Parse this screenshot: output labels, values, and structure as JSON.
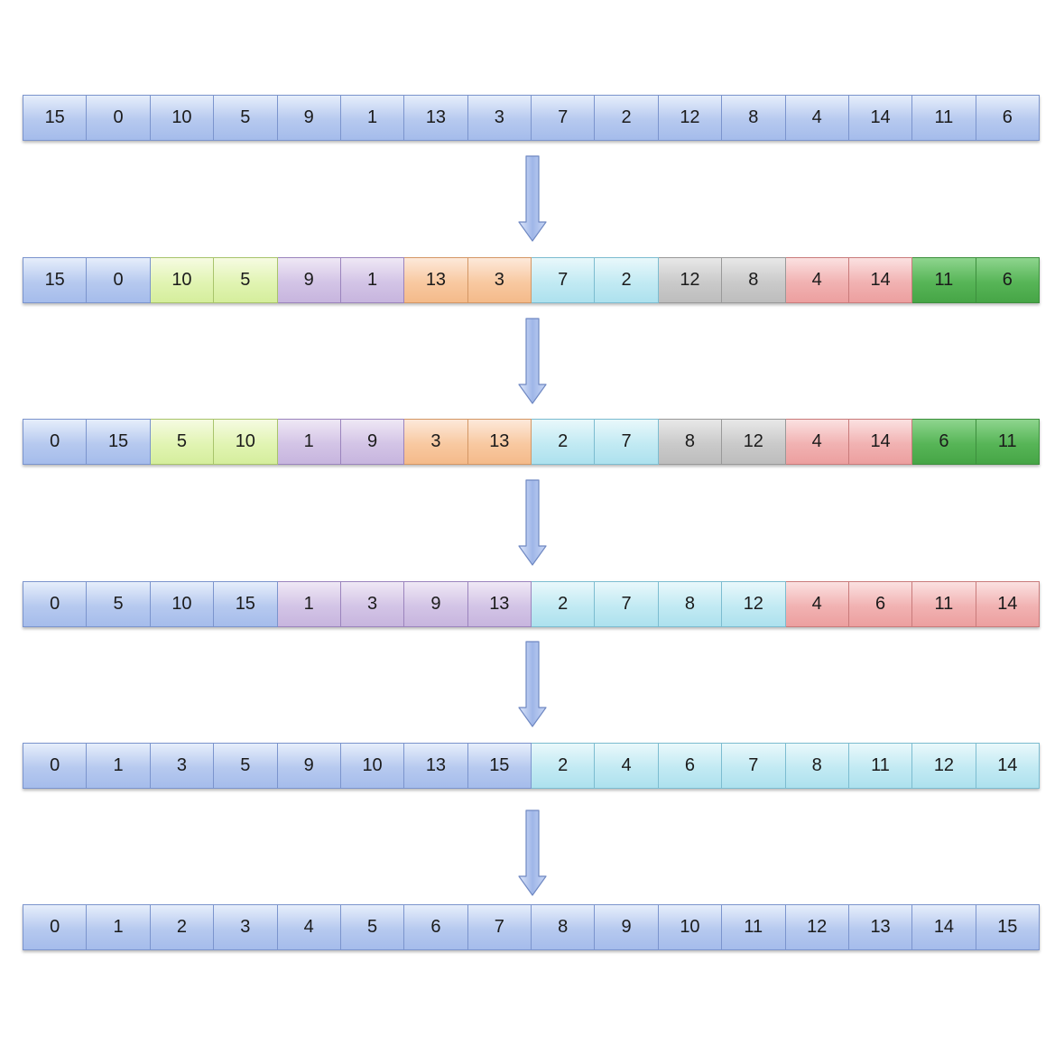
{
  "rows": [
    {
      "values": [
        15,
        0,
        10,
        5,
        9,
        1,
        13,
        3,
        7,
        2,
        12,
        8,
        4,
        14,
        11,
        6
      ],
      "colors": [
        "blue",
        "blue",
        "blue",
        "blue",
        "blue",
        "blue",
        "blue",
        "blue",
        "blue",
        "blue",
        "blue",
        "blue",
        "blue",
        "blue",
        "blue",
        "blue"
      ]
    },
    {
      "values": [
        15,
        0,
        10,
        5,
        9,
        1,
        13,
        3,
        7,
        2,
        12,
        8,
        4,
        14,
        11,
        6
      ],
      "colors": [
        "blue",
        "blue",
        "yellow",
        "yellow",
        "purple",
        "purple",
        "orange",
        "orange",
        "cyan",
        "cyan",
        "gray",
        "gray",
        "red",
        "red",
        "green",
        "green"
      ]
    },
    {
      "values": [
        0,
        15,
        5,
        10,
        1,
        9,
        3,
        13,
        2,
        7,
        8,
        12,
        4,
        14,
        6,
        11
      ],
      "colors": [
        "blue",
        "blue",
        "yellow",
        "yellow",
        "purple",
        "purple",
        "orange",
        "orange",
        "cyan",
        "cyan",
        "gray",
        "gray",
        "red",
        "red",
        "green",
        "green"
      ]
    },
    {
      "values": [
        0,
        5,
        10,
        15,
        1,
        3,
        9,
        13,
        2,
        7,
        8,
        12,
        4,
        6,
        11,
        14
      ],
      "colors": [
        "blue",
        "blue",
        "blue",
        "blue",
        "purple",
        "purple",
        "purple",
        "purple",
        "cyan",
        "cyan",
        "cyan",
        "cyan",
        "red",
        "red",
        "red",
        "red"
      ]
    },
    {
      "values": [
        0,
        1,
        3,
        5,
        9,
        10,
        13,
        15,
        2,
        4,
        6,
        7,
        8,
        11,
        12,
        14
      ],
      "colors": [
        "blue",
        "blue",
        "blue",
        "blue",
        "blue",
        "blue",
        "blue",
        "blue",
        "cyan",
        "cyan",
        "cyan",
        "cyan",
        "cyan",
        "cyan",
        "cyan",
        "cyan"
      ]
    },
    {
      "values": [
        0,
        1,
        2,
        3,
        4,
        5,
        6,
        7,
        8,
        9,
        10,
        11,
        12,
        13,
        14,
        15
      ],
      "colors": [
        "blue",
        "blue",
        "blue",
        "blue",
        "blue",
        "blue",
        "blue",
        "blue",
        "blue",
        "blue",
        "blue",
        "blue",
        "blue",
        "blue",
        "blue",
        "blue"
      ]
    }
  ],
  "arrow_icon": "down-arrow-icon",
  "arrow_color": "#9fb6e8"
}
